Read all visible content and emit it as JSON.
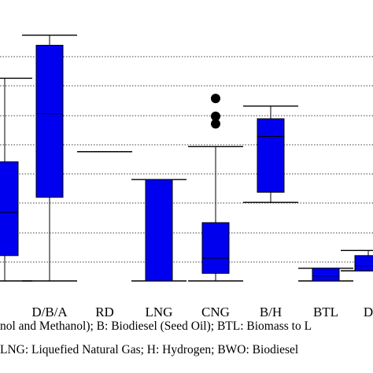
{
  "chart_data": {
    "type": "box",
    "ylim": [
      0,
      1
    ],
    "grid": true,
    "series_color": "#0000ee",
    "categories": [
      "",
      "D/B/A",
      "RD",
      "LNG",
      "CNG",
      "B/H",
      "BTL",
      "D"
    ],
    "boxes": [
      {
        "category": "",
        "whisker_low": 0.0,
        "q1": 0.1,
        "median": 0.27,
        "q3": 0.47,
        "whisker_high": 0.8,
        "outliers": []
      },
      {
        "category": "D/B/A",
        "whisker_low": 0.0,
        "q1": 0.33,
        "median": 0.66,
        "q3": 0.93,
        "whisker_high": 0.97,
        "outliers": []
      },
      {
        "category": "RD",
        "whisker_low": 0.51,
        "q1": 0.51,
        "median": 0.51,
        "q3": 0.51,
        "whisker_high": 0.51,
        "outliers": []
      },
      {
        "category": "LNG",
        "whisker_low": 0.0,
        "q1": 0.0,
        "median": 0.0,
        "q3": 0.4,
        "whisker_high": 0.4,
        "outliers": []
      },
      {
        "category": "CNG",
        "whisker_low": 0.0,
        "q1": 0.03,
        "median": 0.09,
        "q3": 0.23,
        "whisker_high": 0.53,
        "outliers": [
          0.72,
          0.65,
          0.62
        ]
      },
      {
        "category": "B/H",
        "whisker_low": 0.31,
        "q1": 0.35,
        "median": 0.57,
        "q3": 0.64,
        "whisker_high": 0.69,
        "outliers": []
      },
      {
        "category": "BTL",
        "whisker_low": 0.0,
        "q1": 0.0,
        "median": 0.02,
        "q3": 0.05,
        "whisker_high": 0.05,
        "outliers": []
      },
      {
        "category": "D",
        "whisker_low": 0.04,
        "q1": 0.04,
        "median": 0.06,
        "q3": 0.1,
        "whisker_high": 0.12,
        "outliers": []
      }
    ]
  },
  "caption": {
    "line1": "nol and Methanol); B: Biodiesel (Seed Oil); BTL: Biomass to L",
    "line2": " LNG: Liquefied Natural Gas; H: Hydrogen; BWO: Biodiesel"
  }
}
